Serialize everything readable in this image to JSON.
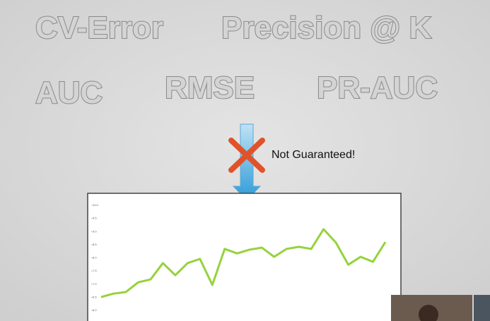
{
  "slide": {
    "metrics": [
      "CV-Error",
      "Precision @ K",
      "AUC",
      "RMSE",
      "PR-AUC"
    ],
    "note": "Not Guaranteed!"
  },
  "chart_data": {
    "type": "line",
    "categories": [
      null,
      null,
      null,
      null,
      null,
      null,
      null,
      null,
      null,
      null,
      null,
      null,
      null,
      null,
      null,
      null,
      null,
      null,
      null,
      null,
      null,
      null,
      null,
      null
    ],
    "series": [
      {
        "color": "#96d23c",
        "values": [
          6.51,
          6.64,
          6.7,
          7.07,
          7.18,
          7.8,
          7.34,
          7.8,
          7.96,
          6.97,
          8.34,
          8.17,
          8.31,
          8.39,
          8.04,
          8.34,
          8.42,
          8.34,
          9.09,
          8.58,
          7.74,
          8.04,
          7.85,
          8.6
        ]
      }
    ],
    "ylim": [
      5.8,
      10.2
    ],
    "yticks": [
      {
        "value": 10,
        "label": "10.0"
      },
      9.5,
      {
        "value": 9,
        "label": "9.0"
      },
      8.5,
      {
        "value": 8,
        "label": "8.0"
      },
      7.5,
      {
        "value": 7,
        "label": "7.0"
      },
      6.5,
      {
        "value": 6,
        "label": "6.0"
      }
    ]
  }
}
